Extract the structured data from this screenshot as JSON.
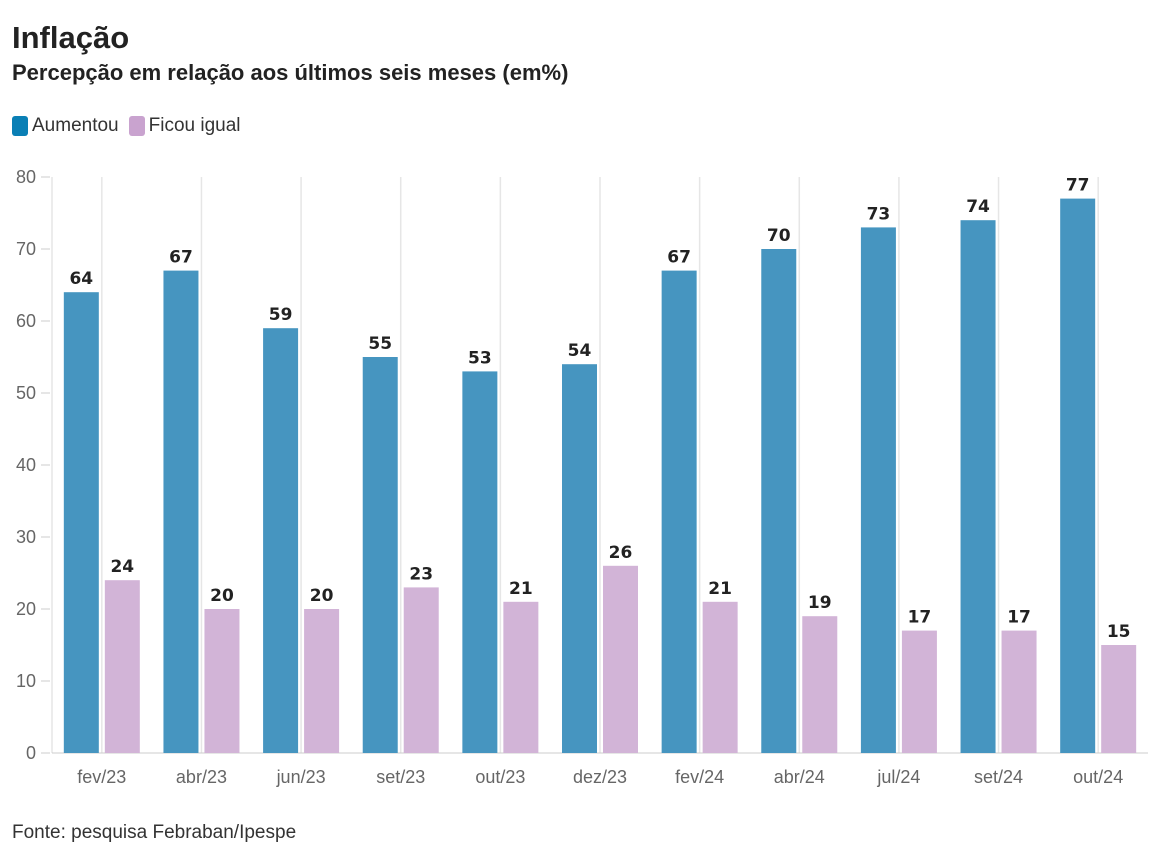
{
  "title": "Inflação",
  "subtitle": "Percepção em relação aos últimos seis meses (em%)",
  "source": "Fonte: pesquisa Febraban/Ipespe",
  "legend": [
    {
      "label": "Aumentou",
      "color": "#0a7fb5"
    },
    {
      "label": "Ficou igual",
      "color": "#c9a3cf"
    }
  ],
  "chart_data": {
    "type": "bar",
    "title": "Inflação",
    "subtitle": "Percepção em relação aos últimos seis meses (em%)",
    "categories": [
      "fev/23",
      "abr/23",
      "jun/23",
      "set/23",
      "out/23",
      "dez/23",
      "fev/24",
      "abr/24",
      "jul/24",
      "set/24",
      "out/24"
    ],
    "series": [
      {
        "name": "Aumentou",
        "color": "#4695c0",
        "values": [
          64,
          67,
          59,
          55,
          53,
          54,
          67,
          70,
          73,
          74,
          77
        ]
      },
      {
        "name": "Ficou igual",
        "color": "#d2b4d7",
        "values": [
          24,
          20,
          20,
          23,
          21,
          26,
          21,
          19,
          17,
          17,
          15
        ]
      }
    ],
    "ylim": [
      0,
      80
    ],
    "yticks": [
      0,
      10,
      20,
      30,
      40,
      50,
      60,
      70,
      80
    ],
    "grid": "vertical",
    "legend_position": "top-left"
  }
}
